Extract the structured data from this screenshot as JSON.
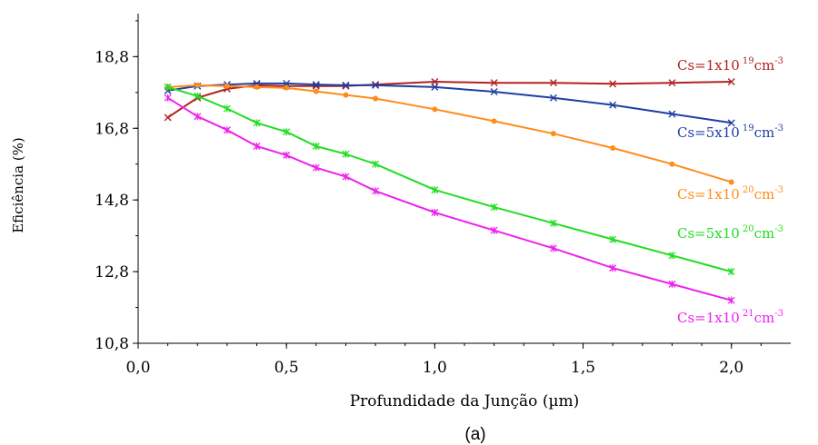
{
  "chart_data": {
    "type": "line",
    "xlabel": "Profundidade da Junção (µm)",
    "ylabel": "Eficiência (%)",
    "caption": "(a)",
    "xlim": [
      0,
      2.2
    ],
    "ylim": [
      10.8,
      20.0
    ],
    "x_ticks": [
      "0,0",
      "0,5",
      "1,0",
      "1,5",
      "2,0"
    ],
    "x_tick_values": [
      0,
      0.5,
      1.0,
      1.5,
      2.0
    ],
    "y_ticks": [
      "10,8",
      "12,8",
      "14,8",
      "16,8",
      "18,8"
    ],
    "y_tick_values": [
      10.8,
      12.8,
      14.8,
      16.8,
      18.8
    ],
    "grid": false,
    "series": [
      {
        "name": "Cs=1x10 19cm-3",
        "label_parts": {
          "pre": "Cs=1x10",
          "exp1": "19",
          "mid": "cm",
          "exp2": "-3"
        },
        "color": "#b22222",
        "marker": "x",
        "x": [
          0.1,
          0.2,
          0.3,
          0.4,
          0.5,
          0.6,
          0.7,
          0.8,
          1.0,
          1.2,
          1.4,
          1.6,
          1.8,
          2.0
        ],
        "y": [
          17.1,
          17.65,
          17.9,
          18.0,
          17.98,
          17.98,
          17.98,
          18.02,
          18.1,
          18.07,
          18.07,
          18.04,
          18.07,
          18.1
        ]
      },
      {
        "name": "Cs=5x10 19cm-3",
        "label_parts": {
          "pre": "Cs=5x10",
          "exp1": "19",
          "mid": "cm",
          "exp2": "-3"
        },
        "color": "#1f3fa3",
        "marker": "x",
        "x": [
          0.1,
          0.2,
          0.3,
          0.4,
          0.5,
          0.6,
          0.7,
          0.8,
          1.0,
          1.2,
          1.4,
          1.6,
          1.8,
          2.0
        ],
        "y": [
          17.85,
          17.98,
          18.02,
          18.05,
          18.05,
          18.02,
          18.0,
          18.0,
          17.95,
          17.82,
          17.65,
          17.45,
          17.2,
          16.95
        ]
      },
      {
        "name": "Cs=1x10 20cm-3",
        "label_parts": {
          "pre": "Cs=1x10",
          "exp1": "20",
          "mid": "cm",
          "exp2": "-3"
        },
        "color": "#ff8c1a",
        "marker": "dot",
        "x": [
          0.1,
          0.2,
          0.3,
          0.4,
          0.5,
          0.6,
          0.7,
          0.8,
          1.0,
          1.2,
          1.4,
          1.6,
          1.8,
          2.0
        ],
        "y": [
          17.95,
          18.0,
          17.98,
          17.95,
          17.93,
          17.83,
          17.73,
          17.63,
          17.33,
          17.0,
          16.65,
          16.25,
          15.8,
          15.3
        ]
      },
      {
        "name": "Cs=5x10 20cm-3",
        "label_parts": {
          "pre": "Cs=5x10",
          "exp1": "20",
          "mid": "cm",
          "exp2": "-3"
        },
        "color": "#22dd22",
        "marker": "star",
        "x": [
          0.1,
          0.2,
          0.3,
          0.4,
          0.5,
          0.6,
          0.7,
          0.8,
          1.0,
          1.2,
          1.4,
          1.6,
          1.8,
          2.0
        ],
        "y": [
          17.95,
          17.7,
          17.35,
          16.95,
          16.7,
          16.3,
          16.08,
          15.8,
          15.08,
          14.6,
          14.15,
          13.7,
          13.25,
          12.8
        ]
      },
      {
        "name": "Cs=1x10 21cm-3",
        "label_parts": {
          "pre": "Cs=1x10",
          "exp1": "21",
          "mid": "cm",
          "exp2": "-3"
        },
        "color": "#ee22ee",
        "marker": "star",
        "x": [
          0.1,
          0.2,
          0.3,
          0.4,
          0.5,
          0.6,
          0.7,
          0.8,
          1.0,
          1.2,
          1.4,
          1.6,
          1.8,
          2.0
        ],
        "y": [
          17.65,
          17.13,
          16.75,
          16.3,
          16.05,
          15.7,
          15.45,
          15.05,
          14.45,
          13.95,
          13.45,
          12.9,
          12.45,
          12.0
        ]
      }
    ]
  }
}
